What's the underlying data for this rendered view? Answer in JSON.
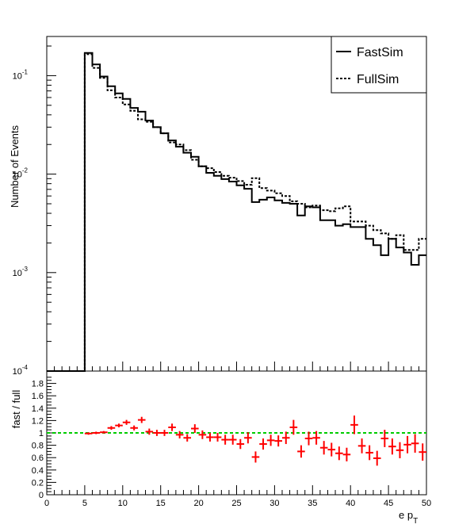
{
  "chart_data": [
    {
      "type": "line",
      "subtype": "histogram",
      "ylabel": "Number of Events",
      "yscale": "log",
      "ylim": [
        0.0001,
        0.25
      ],
      "xlim": [
        0,
        50
      ],
      "bin_width": 1,
      "bin_start": 0,
      "y_ticks": [
        {
          "mant": "10",
          "exp": "-4",
          "value": 0.0001
        },
        {
          "mant": "10",
          "exp": "-3",
          "value": 0.001
        },
        {
          "mant": "10",
          "exp": "-2",
          "value": 0.01
        },
        {
          "mant": "10",
          "exp": "-1",
          "value": 0.1
        }
      ],
      "legend": {
        "position": "top-right",
        "entries": [
          "FastSim",
          "FullSim"
        ]
      },
      "series": [
        {
          "name": "FastSim",
          "style": "solid",
          "values": [
            0.0001,
            0.0001,
            0.0001,
            0.0001,
            0.0001,
            0.17,
            0.13,
            0.098,
            0.078,
            0.066,
            0.058,
            0.047,
            0.043,
            0.035,
            0.03,
            0.026,
            0.022,
            0.019,
            0.0165,
            0.015,
            0.012,
            0.0103,
            0.0096,
            0.0089,
            0.0084,
            0.0077,
            0.0071,
            0.0052,
            0.0055,
            0.0058,
            0.0054,
            0.0051,
            0.005,
            0.0038,
            0.0047,
            0.0046,
            0.0034,
            0.0034,
            0.003,
            0.0031,
            0.0029,
            0.0029,
            0.0022,
            0.0019,
            0.0015,
            0.0022,
            0.0018,
            0.0016,
            0.0012,
            0.0015
          ]
        },
        {
          "name": "FullSim",
          "style": "dotted",
          "values": [
            0.0001,
            0.0001,
            0.0001,
            0.0001,
            0.0001,
            0.165,
            0.12,
            0.095,
            0.071,
            0.06,
            0.051,
            0.044,
            0.036,
            0.034,
            0.03,
            0.026,
            0.021,
            0.02,
            0.0175,
            0.014,
            0.012,
            0.0115,
            0.0105,
            0.0096,
            0.0092,
            0.0085,
            0.0078,
            0.0091,
            0.0072,
            0.0068,
            0.0064,
            0.006,
            0.0053,
            0.005,
            0.0046,
            0.0048,
            0.0043,
            0.0042,
            0.0045,
            0.0047,
            0.0033,
            0.0033,
            0.003,
            0.0027,
            0.0025,
            0.0022,
            0.0024,
            0.0017,
            0.0017,
            0.0022
          ]
        }
      ]
    },
    {
      "type": "scatter",
      "subtype": "errorbar",
      "ylabel": "fast / full",
      "xlabel_main": "e p",
      "xlabel_sub": "T",
      "xlim": [
        0,
        50
      ],
      "ylim": [
        0,
        2
      ],
      "x_ticks": [
        "0",
        "5",
        "10",
        "15",
        "20",
        "25",
        "30",
        "35",
        "40",
        "45",
        "50"
      ],
      "y_ticks": [
        "0",
        "0.2",
        "0.4",
        "0.6",
        "0.8",
        "1",
        "1.2",
        "1.4",
        "1.6",
        "1.8"
      ],
      "reference_line": {
        "y": 1,
        "color": "#00cc00",
        "style": "dashed"
      },
      "marker_color": "#ff0000",
      "series": [
        {
          "x": [
            5.5,
            6.5,
            7.5,
            8.5,
            9.5,
            10.5,
            11.5,
            12.5,
            13.5,
            14.5,
            15.5,
            16.5,
            17.5,
            18.5,
            19.5,
            20.5,
            21.5,
            22.5,
            23.5,
            24.5,
            25.5,
            26.5,
            27.5,
            28.5,
            29.5,
            30.5,
            31.5,
            32.5,
            33.5,
            34.5,
            35.5,
            36.5,
            37.5,
            38.5,
            39.5,
            40.5,
            41.5,
            42.5,
            43.5,
            44.5,
            45.5,
            46.5,
            47.5,
            48.5,
            49.5
          ],
          "y": [
            0.99,
            1.0,
            1.01,
            1.08,
            1.12,
            1.17,
            1.08,
            1.21,
            1.02,
            1.0,
            1.0,
            1.09,
            0.97,
            0.92,
            1.07,
            0.97,
            0.93,
            0.93,
            0.89,
            0.89,
            0.82,
            0.92,
            0.61,
            0.82,
            0.88,
            0.87,
            0.92,
            1.09,
            0.7,
            0.91,
            0.92,
            0.76,
            0.73,
            0.67,
            0.65,
            1.13,
            0.79,
            0.68,
            0.59,
            0.91,
            0.78,
            0.72,
            0.81,
            0.83,
            0.69
          ],
          "yerr": [
            0.02,
            0.02,
            0.02,
            0.03,
            0.03,
            0.04,
            0.04,
            0.05,
            0.05,
            0.05,
            0.05,
            0.06,
            0.06,
            0.06,
            0.07,
            0.07,
            0.07,
            0.07,
            0.08,
            0.08,
            0.08,
            0.09,
            0.09,
            0.09,
            0.09,
            0.09,
            0.1,
            0.12,
            0.1,
            0.11,
            0.11,
            0.11,
            0.11,
            0.11,
            0.11,
            0.15,
            0.12,
            0.12,
            0.12,
            0.14,
            0.13,
            0.13,
            0.14,
            0.15,
            0.14
          ]
        }
      ]
    }
  ]
}
